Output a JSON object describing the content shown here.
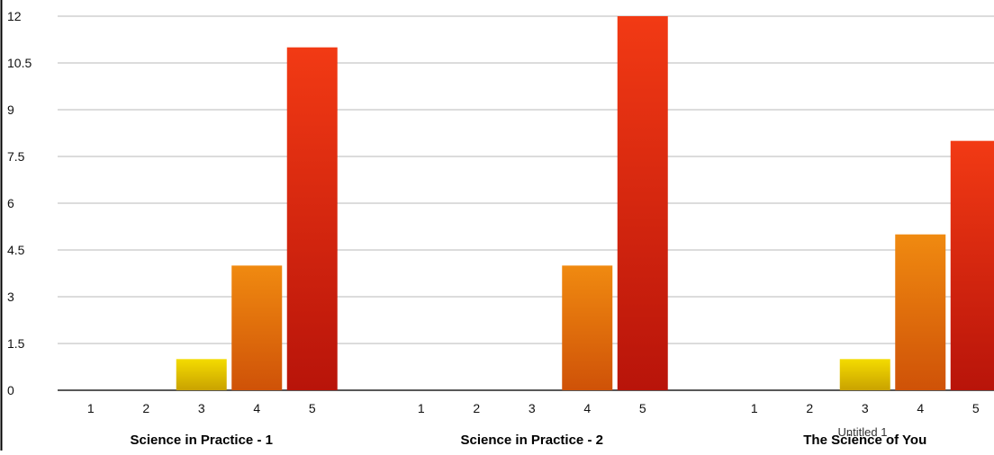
{
  "chart_data": {
    "type": "bar",
    "groups": [
      "Science in Practice - 1",
      "Science in Practice - 2",
      "The Science of You"
    ],
    "categories": [
      "1",
      "2",
      "3",
      "4",
      "5"
    ],
    "values": [
      [
        0,
        0,
        1,
        4,
        11
      ],
      [
        0,
        0,
        0,
        4,
        12
      ],
      [
        0,
        0,
        1,
        5,
        8
      ]
    ],
    "category_colors": {
      "3": [
        "#f4dc00",
        "#c9a200"
      ],
      "4": [
        "#f08a10",
        "#cf5208"
      ],
      "5": [
        "#f23a14",
        "#b8140a"
      ]
    },
    "yticks": [
      "0",
      "1.5",
      "3",
      "4.5",
      "6",
      "7.5",
      "9",
      "10.5",
      "12"
    ],
    "ylim": [
      0,
      12
    ],
    "grid": true,
    "overlay_text": "Untitled 1"
  }
}
